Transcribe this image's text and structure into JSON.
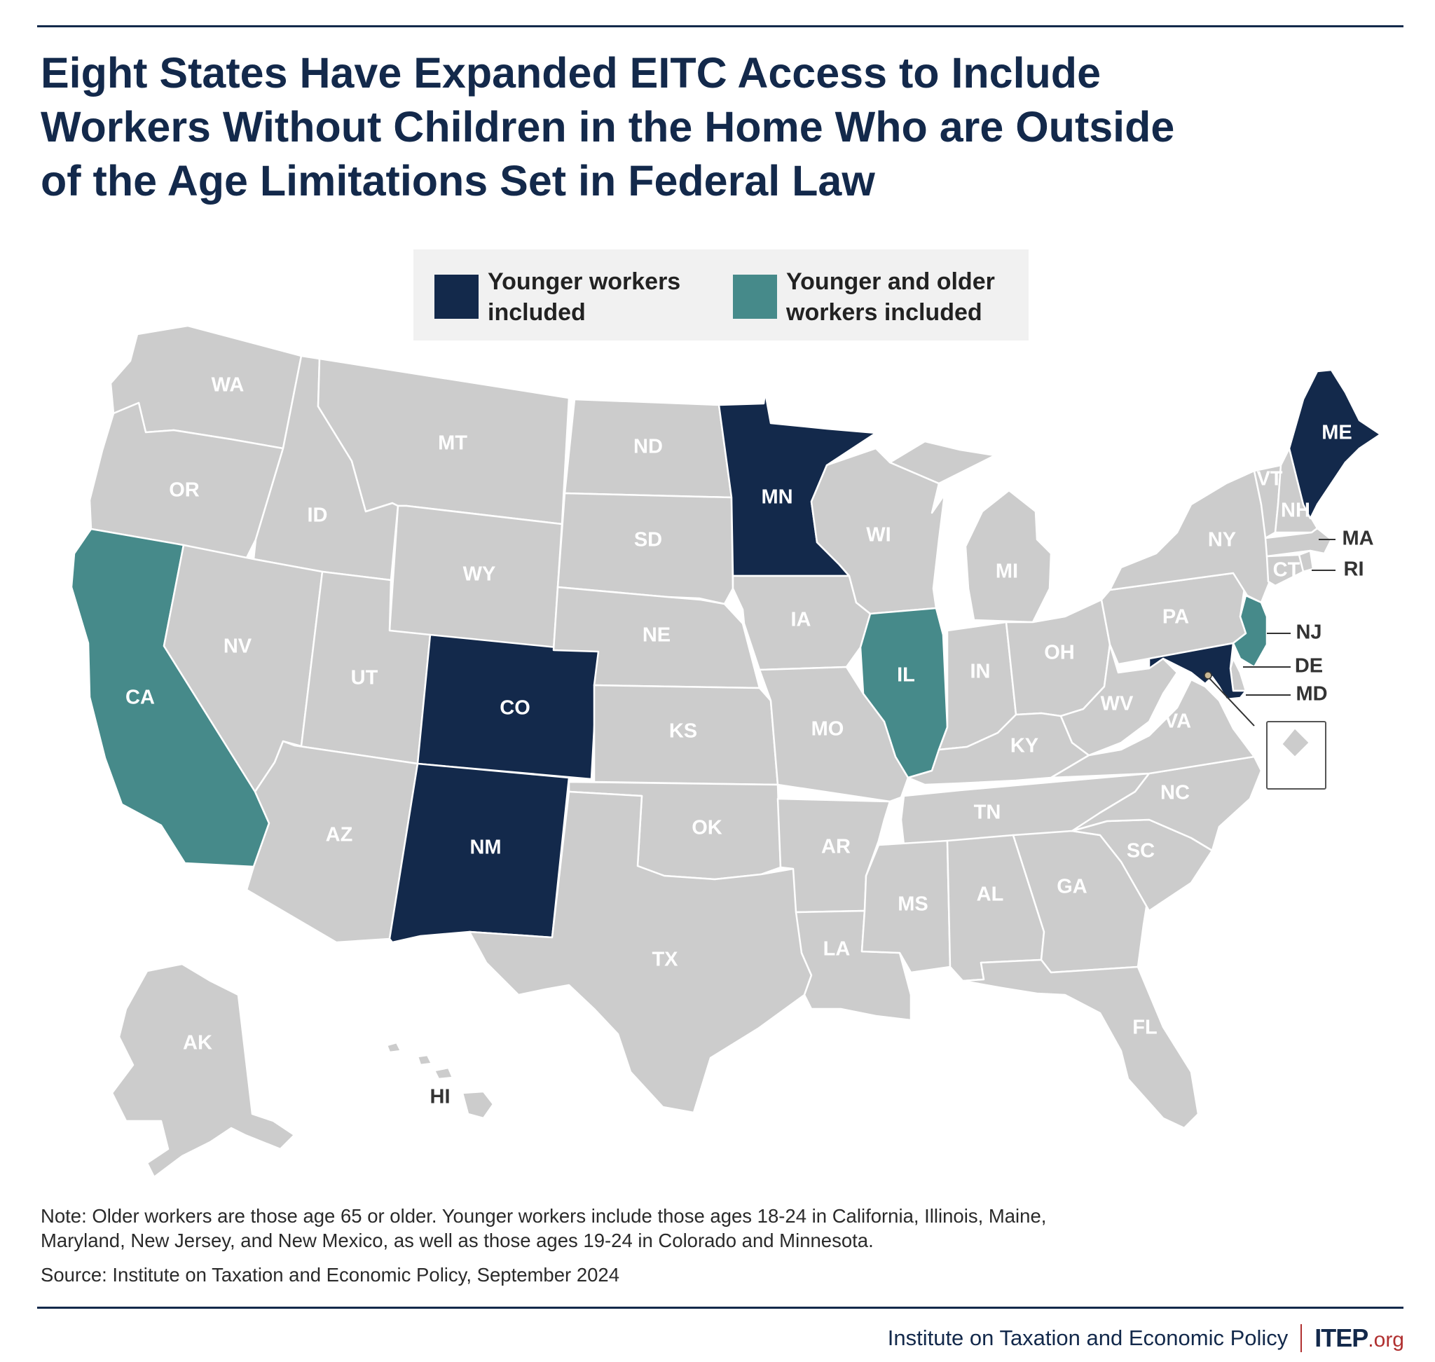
{
  "title_lines": [
    "Eight States Have Expanded EITC Access to Include",
    "Workers Without Children in the Home Who are Outside",
    "of the Age Limitations Set in Federal Law"
  ],
  "legend": {
    "younger": {
      "line1": "Younger workers",
      "line2": "included",
      "color": "#13294b"
    },
    "both": {
      "line1": "Younger and older",
      "line2": "workers included",
      "color": "#468a8a"
    }
  },
  "colors": {
    "default": "#cccccc",
    "younger": "#13294b",
    "both": "#468a8a",
    "border": "#ffffff"
  },
  "states": {
    "WA": {
      "label": "WA",
      "cat": "none"
    },
    "OR": {
      "label": "OR",
      "cat": "none"
    },
    "CA": {
      "label": "CA",
      "cat": "both"
    },
    "ID": {
      "label": "ID",
      "cat": "none"
    },
    "NV": {
      "label": "NV",
      "cat": "none"
    },
    "MT": {
      "label": "MT",
      "cat": "none"
    },
    "WY": {
      "label": "WY",
      "cat": "none"
    },
    "UT": {
      "label": "UT",
      "cat": "none"
    },
    "AZ": {
      "label": "AZ",
      "cat": "none"
    },
    "CO": {
      "label": "CO",
      "cat": "younger"
    },
    "NM": {
      "label": "NM",
      "cat": "younger"
    },
    "ND": {
      "label": "ND",
      "cat": "none"
    },
    "SD": {
      "label": "SD",
      "cat": "none"
    },
    "NE": {
      "label": "NE",
      "cat": "none"
    },
    "KS": {
      "label": "KS",
      "cat": "none"
    },
    "OK": {
      "label": "OK",
      "cat": "none"
    },
    "TX": {
      "label": "TX",
      "cat": "none"
    },
    "MN": {
      "label": "MN",
      "cat": "younger"
    },
    "IA": {
      "label": "IA",
      "cat": "none"
    },
    "MO": {
      "label": "MO",
      "cat": "none"
    },
    "AR": {
      "label": "AR",
      "cat": "none"
    },
    "LA": {
      "label": "LA",
      "cat": "none"
    },
    "WI": {
      "label": "WI",
      "cat": "none"
    },
    "IL": {
      "label": "IL",
      "cat": "both"
    },
    "MI": {
      "label": "MI",
      "cat": "none"
    },
    "IN": {
      "label": "IN",
      "cat": "none"
    },
    "OH": {
      "label": "OH",
      "cat": "none"
    },
    "KY": {
      "label": "KY",
      "cat": "none"
    },
    "TN": {
      "label": "TN",
      "cat": "none"
    },
    "MS": {
      "label": "MS",
      "cat": "none"
    },
    "AL": {
      "label": "AL",
      "cat": "none"
    },
    "GA": {
      "label": "GA",
      "cat": "none"
    },
    "FL": {
      "label": "FL",
      "cat": "none"
    },
    "SC": {
      "label": "SC",
      "cat": "none"
    },
    "NC": {
      "label": "NC",
      "cat": "none"
    },
    "VA": {
      "label": "VA",
      "cat": "none"
    },
    "WV": {
      "label": "WV",
      "cat": "none"
    },
    "PA": {
      "label": "PA",
      "cat": "none"
    },
    "NY": {
      "label": "NY",
      "cat": "none"
    },
    "VT": {
      "label": "VT",
      "cat": "none"
    },
    "NH": {
      "label": "NH",
      "cat": "none"
    },
    "ME": {
      "label": "ME",
      "cat": "younger"
    },
    "MA": {
      "label": "MA",
      "cat": "none"
    },
    "RI": {
      "label": "RI",
      "cat": "none"
    },
    "CT": {
      "label": "CT",
      "cat": "none"
    },
    "NJ": {
      "label": "NJ",
      "cat": "both"
    },
    "DE": {
      "label": "DE",
      "cat": "none"
    },
    "MD": {
      "label": "MD",
      "cat": "younger"
    },
    "DC": {
      "label": "D.C.",
      "cat": "none"
    },
    "AK": {
      "label": "AK",
      "cat": "none"
    },
    "HI": {
      "label": "HI",
      "cat": "none"
    }
  },
  "note_lines": [
    "Note: Older workers are those age 65 or older. Younger workers include those ages 18-24 in California, Illinois, Maine,",
    "Maryland, New Jersey, and New Mexico, as well as those ages 19-24 in Colorado and Minnesota."
  ],
  "source": "Source: Institute on Taxation and Economic Policy, September 2024",
  "footer": {
    "org": "Institute on Taxation and Economic Policy",
    "logo_main": "ITEP",
    "logo_suffix": ".org"
  }
}
